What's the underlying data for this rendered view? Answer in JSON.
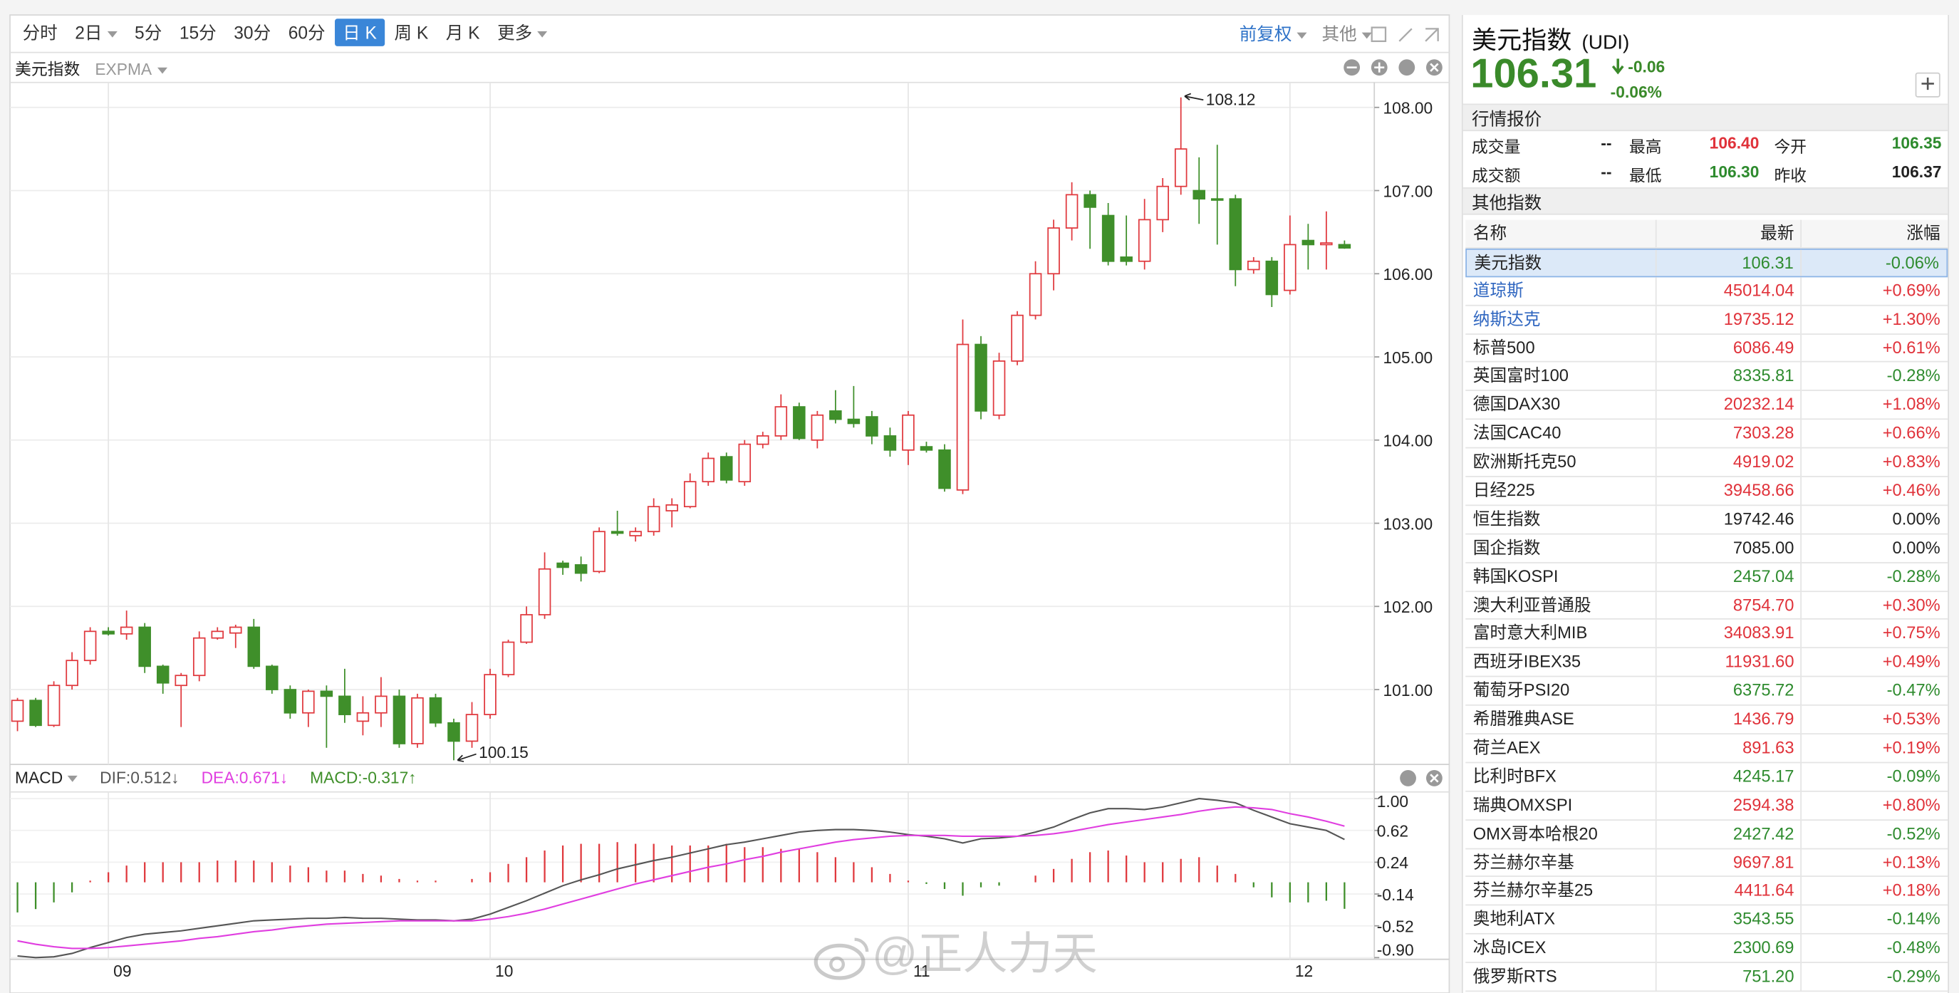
{
  "toolbar": {
    "periods": [
      "分时",
      "2日",
      "5分",
      "15分",
      "30分",
      "60分",
      "日 K",
      "周 K",
      "月 K",
      "更多"
    ],
    "right": [
      "前复权",
      "其他"
    ]
  },
  "chart_header": {
    "name": "美元指数",
    "indicator": "EXPMA"
  },
  "quote": {
    "name": "美元指数",
    "code": "(UDI)",
    "price": "106.31",
    "change": "-0.06",
    "change_pct": "-0.06%"
  },
  "market": {
    "title": "行情报价",
    "rows": [
      [
        "成交量",
        "--",
        "最高",
        "106.40",
        "今开",
        "106.35"
      ],
      [
        "成交额",
        "--",
        "最低",
        "106.30",
        "昨收",
        "106.37"
      ]
    ]
  },
  "table": {
    "title": "其他指数",
    "header": [
      "名称",
      "最新",
      "涨幅"
    ],
    "rows": [
      [
        "美元指数",
        "106.31",
        "-0.06%"
      ],
      [
        "道琼斯",
        "45014.04",
        "+0.69%"
      ],
      [
        "纳斯达克",
        "19735.12",
        "+1.30%"
      ],
      [
        "标普500",
        "6086.49",
        "+0.61%"
      ],
      [
        "英国富时100",
        "8335.81",
        "-0.28%"
      ],
      [
        "德国DAX30",
        "20232.14",
        "+1.08%"
      ],
      [
        "法国CAC40",
        "7303.28",
        "+0.66%"
      ],
      [
        "欧洲斯托克50",
        "4919.02",
        "+0.83%"
      ],
      [
        "日经225",
        "39458.66",
        "+0.46%"
      ],
      [
        "恒生指数",
        "19742.46",
        "0.00%"
      ],
      [
        "国企指数",
        "7085.00",
        "0.00%"
      ],
      [
        "韩国KOSPI",
        "2457.04",
        "-0.28%"
      ],
      [
        "澳大利亚普通股",
        "8754.70",
        "+0.30%"
      ],
      [
        "富时意大利MIB",
        "34083.91",
        "+0.75%"
      ],
      [
        "西班牙IBEX35",
        "11931.60",
        "+0.49%"
      ],
      [
        "葡萄牙PSI20",
        "6375.72",
        "-0.47%"
      ],
      [
        "希腊雅典ASE",
        "1436.79",
        "+0.53%"
      ],
      [
        "荷兰AEX",
        "891.63",
        "+0.19%"
      ],
      [
        "比利时BFX",
        "4245.17",
        "-0.09%"
      ],
      [
        "瑞典OMXSPI",
        "2594.38",
        "+0.80%"
      ],
      [
        "OMX哥本哈根20",
        "2427.42",
        "-0.52%"
      ],
      [
        "芬兰赫尔辛基",
        "9697.81",
        "+0.13%"
      ],
      [
        "芬兰赫尔辛基25",
        "4411.64",
        "+0.18%"
      ],
      [
        "奥地利ATX",
        "3543.55",
        "-0.14%"
      ],
      [
        "冰岛ICEX",
        "2300.69",
        "-0.48%"
      ],
      [
        "俄罗斯RTS",
        "751.20",
        "-0.29%"
      ]
    ]
  },
  "watermark": "@正人力天",
  "chart_data": [
    {
      "type": "candlestick",
      "categories": [
        null,
        null,
        null,
        null,
        null,
        "09",
        null,
        null,
        null,
        null,
        null,
        null,
        null,
        null,
        null,
        null,
        null,
        null,
        null,
        null,
        null,
        null,
        null,
        null,
        null,
        null,
        "10",
        null,
        null,
        null,
        null,
        null,
        null,
        null,
        null,
        null,
        null,
        null,
        null,
        null,
        null,
        null,
        null,
        null,
        null,
        null,
        null,
        null,
        null,
        "11",
        null,
        null,
        null,
        null,
        null,
        null,
        null,
        null,
        null,
        null,
        null,
        null,
        null,
        null,
        null,
        null,
        null,
        null,
        null,
        null,
        "12",
        null,
        null,
        null
      ],
      "open": [
        100.62,
        100.87,
        100.57,
        101.05,
        101.35,
        101.7,
        101.67,
        101.75,
        101.28,
        101.05,
        101.17,
        101.62,
        101.68,
        101.75,
        101.28,
        101.0,
        100.72,
        100.98,
        100.92,
        100.62,
        100.72,
        100.92,
        100.35,
        100.9,
        100.6,
        100.38,
        100.7,
        101.18,
        101.57,
        101.9,
        102.52,
        102.5,
        102.42,
        102.9,
        102.85,
        102.9,
        103.15,
        103.2,
        103.5,
        103.8,
        103.5,
        103.95,
        104.05,
        104.4,
        104.0,
        104.35,
        104.25,
        104.28,
        104.05,
        103.88,
        103.92,
        103.88,
        103.4,
        105.15,
        104.3,
        104.95,
        105.5,
        106.0,
        106.55,
        106.95,
        106.7,
        106.2,
        106.15,
        106.65,
        107.05,
        107.0,
        106.9,
        106.9,
        106.05,
        106.15,
        105.8,
        106.4,
        106.35,
        106.35
      ],
      "high": [
        100.9,
        100.9,
        101.1,
        101.45,
        101.75,
        101.75,
        101.95,
        101.8,
        101.3,
        101.2,
        101.7,
        101.75,
        101.78,
        101.85,
        101.3,
        101.05,
        101.0,
        101.05,
        101.25,
        100.92,
        101.15,
        101.0,
        100.95,
        100.95,
        100.65,
        100.85,
        101.25,
        101.6,
        102.0,
        102.65,
        102.55,
        102.6,
        102.95,
        103.15,
        102.95,
        103.3,
        103.3,
        103.6,
        103.85,
        103.85,
        104.0,
        104.1,
        104.55,
        104.45,
        104.35,
        104.6,
        104.65,
        104.35,
        104.15,
        104.35,
        103.98,
        103.95,
        105.45,
        105.25,
        105.05,
        105.55,
        106.15,
        106.65,
        107.1,
        107.0,
        106.85,
        106.7,
        106.9,
        107.15,
        108.12,
        107.4,
        107.55,
        106.95,
        106.2,
        106.2,
        106.7,
        106.6,
        106.75,
        106.4
      ],
      "low": [
        100.5,
        100.55,
        100.55,
        101.0,
        101.3,
        101.65,
        101.6,
        101.2,
        100.95,
        100.55,
        101.1,
        101.6,
        101.5,
        101.25,
        100.95,
        100.65,
        100.55,
        100.3,
        100.6,
        100.45,
        100.55,
        100.3,
        100.3,
        100.55,
        100.15,
        100.3,
        100.65,
        101.15,
        101.55,
        101.85,
        102.38,
        102.3,
        102.4,
        102.85,
        102.78,
        102.85,
        102.95,
        103.18,
        103.45,
        103.48,
        103.45,
        103.9,
        104.0,
        104.0,
        103.9,
        104.2,
        104.15,
        103.95,
        103.8,
        103.7,
        103.85,
        103.38,
        103.35,
        104.25,
        104.25,
        104.9,
        105.45,
        105.8,
        106.4,
        106.3,
        106.1,
        106.1,
        106.05,
        106.5,
        106.95,
        106.6,
        106.35,
        105.85,
        106.0,
        105.6,
        105.75,
        106.05,
        106.05,
        106.3
      ],
      "close": [
        100.87,
        100.57,
        101.05,
        101.35,
        101.7,
        101.67,
        101.75,
        101.28,
        101.08,
        101.17,
        101.62,
        101.7,
        101.75,
        101.28,
        101.0,
        100.72,
        100.98,
        100.92,
        100.7,
        100.72,
        100.92,
        100.35,
        100.9,
        100.6,
        100.38,
        100.7,
        101.18,
        101.57,
        101.9,
        102.45,
        102.47,
        102.4,
        102.9,
        102.88,
        102.9,
        103.2,
        103.22,
        103.5,
        103.78,
        103.52,
        103.95,
        104.05,
        104.4,
        104.02,
        104.3,
        104.25,
        104.2,
        104.05,
        103.88,
        104.3,
        103.88,
        103.42,
        105.15,
        104.35,
        104.95,
        105.5,
        106.0,
        106.55,
        106.95,
        106.8,
        106.15,
        106.15,
        106.65,
        107.05,
        107.5,
        106.9,
        106.9,
        106.05,
        106.15,
        105.75,
        106.35,
        106.35,
        106.37,
        106.31
      ],
      "up_color": "#e0393e",
      "down_color": "#3f8f2a",
      "ylim": [
        100.1,
        108.3
      ],
      "yticks": [
        {
          "value": 101,
          "label": "101.00"
        },
        {
          "value": 102,
          "label": "102.00"
        },
        {
          "value": 103,
          "label": "103.00"
        },
        {
          "value": 104,
          "label": "104.00"
        },
        {
          "value": 105,
          "label": "105.00"
        },
        {
          "value": 106,
          "label": "106.00"
        },
        {
          "value": 107,
          "label": "107.00"
        },
        {
          "value": 108,
          "label": "108.00"
        }
      ],
      "grid": true
    },
    {
      "type": "macd",
      "title": "MACD",
      "series": [
        {
          "name": "DIF:0.512↓",
          "color": "#555555",
          "values": [
            -0.88,
            -0.9,
            -0.89,
            -0.85,
            -0.78,
            -0.72,
            -0.66,
            -0.62,
            -0.6,
            -0.58,
            -0.55,
            -0.52,
            -0.49,
            -0.46,
            -0.45,
            -0.44,
            -0.43,
            -0.43,
            -0.42,
            -0.43,
            -0.43,
            -0.44,
            -0.45,
            -0.45,
            -0.46,
            -0.44,
            -0.38,
            -0.3,
            -0.22,
            -0.13,
            -0.04,
            0.03,
            0.09,
            0.16,
            0.21,
            0.26,
            0.3,
            0.35,
            0.4,
            0.45,
            0.48,
            0.52,
            0.56,
            0.6,
            0.62,
            0.63,
            0.63,
            0.62,
            0.6,
            0.57,
            0.55,
            0.52,
            0.47,
            0.52,
            0.53,
            0.55,
            0.6,
            0.66,
            0.75,
            0.83,
            0.88,
            0.88,
            0.87,
            0.9,
            0.95,
            1.0,
            0.98,
            0.95,
            0.86,
            0.78,
            0.7,
            0.66,
            0.62,
            0.512
          ]
        },
        {
          "name": "DEA:0.671↓",
          "color": "#e03ee0",
          "values": [
            -0.7,
            -0.74,
            -0.77,
            -0.79,
            -0.79,
            -0.78,
            -0.76,
            -0.74,
            -0.72,
            -0.7,
            -0.67,
            -0.65,
            -0.62,
            -0.59,
            -0.57,
            -0.54,
            -0.52,
            -0.5,
            -0.49,
            -0.48,
            -0.47,
            -0.46,
            -0.46,
            -0.46,
            -0.46,
            -0.46,
            -0.44,
            -0.41,
            -0.37,
            -0.32,
            -0.26,
            -0.2,
            -0.14,
            -0.08,
            -0.02,
            0.03,
            0.08,
            0.13,
            0.18,
            0.22,
            0.27,
            0.31,
            0.36,
            0.4,
            0.44,
            0.48,
            0.51,
            0.53,
            0.55,
            0.56,
            0.56,
            0.56,
            0.55,
            0.55,
            0.55,
            0.55,
            0.56,
            0.58,
            0.61,
            0.65,
            0.69,
            0.72,
            0.75,
            0.78,
            0.81,
            0.85,
            0.88,
            0.9,
            0.89,
            0.87,
            0.82,
            0.78,
            0.73,
            0.671
          ]
        },
        {
          "name": "MACD:-0.317↑",
          "type": "bar",
          "color": "#3f8f2a",
          "up_color": "#e0393e",
          "values": [
            -0.36,
            -0.32,
            -0.24,
            -0.12,
            0.02,
            0.12,
            0.2,
            0.24,
            0.24,
            0.24,
            0.24,
            0.26,
            0.26,
            0.26,
            0.24,
            0.2,
            0.18,
            0.14,
            0.14,
            0.1,
            0.08,
            0.04,
            0.02,
            0.02,
            0,
            0.04,
            0.12,
            0.22,
            0.3,
            0.38,
            0.44,
            0.46,
            0.46,
            0.48,
            0.46,
            0.46,
            0.44,
            0.44,
            0.44,
            0.46,
            0.42,
            0.42,
            0.4,
            0.4,
            0.36,
            0.3,
            0.24,
            0.18,
            0.1,
            0.02,
            -0.02,
            -0.08,
            -0.16,
            -0.06,
            -0.04,
            0,
            0.08,
            0.16,
            0.28,
            0.36,
            0.38,
            0.32,
            0.24,
            0.24,
            0.28,
            0.3,
            0.2,
            0.1,
            -0.06,
            -0.18,
            -0.24,
            -0.24,
            -0.22,
            -0.317
          ]
        }
      ],
      "ylim": [
        -0.92,
        1.08
      ],
      "yticks": [
        {
          "value": 1,
          "label": "1.00"
        },
        0.62,
        0.24,
        -0.14,
        -0.52,
        {
          "value": -0.9,
          "label": "-0.90"
        }
      ],
      "grid": true
    }
  ]
}
